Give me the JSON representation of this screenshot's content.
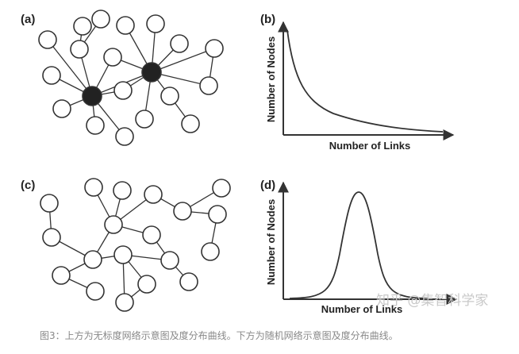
{
  "panels": {
    "a": {
      "label": "(a)"
    },
    "b": {
      "label": "(b)",
      "xlabel": "Number of Links",
      "ylabel": "Number of Nodes"
    },
    "c": {
      "label": "(c)"
    },
    "d": {
      "label": "(d)",
      "xlabel": "Number of Links",
      "ylabel": "Number of Nodes"
    }
  },
  "chart_data": [
    {
      "panel": "b",
      "type": "line",
      "shape": "power-law decay",
      "xlabel": "Number of Links",
      "ylabel": "Number of Nodes"
    },
    {
      "panel": "d",
      "type": "line",
      "shape": "bell curve",
      "xlabel": "Number of Links",
      "ylabel": "Number of Nodes"
    }
  ],
  "colors": {
    "node_fill": "#ffffff",
    "hub_fill": "#222222",
    "stroke": "#333333",
    "caption": "#888888",
    "watermark": "#c9c9c9"
  },
  "watermark": "知乎 @集智科学家",
  "caption": "图3：上方为无标度网络示意图及度分布曲线。下方为随机网络示意图及度分布曲线。"
}
